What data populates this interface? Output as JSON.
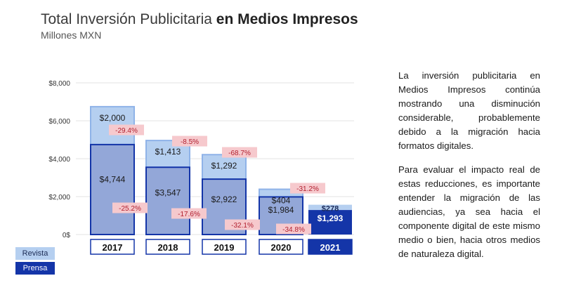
{
  "title": {
    "light": "Total Inversión Publicitaria ",
    "bold": "en Medios Impresos"
  },
  "subtitle": "Millones MXN",
  "legend": {
    "revista": "Revista",
    "prensa": "Prensa"
  },
  "paragraphs": [
    "La inversión publicitaria en Medios Impresos continúa mostrando una disminución considerable, probablemente debido a la migración hacia formatos digitales.",
    "Para evaluar el impacto real de estas reducciones, es importante entender la migración de las audiencias, ya sea hacia el componente digital de este mismo medio o bien, hacia otros medios de naturaleza digital."
  ],
  "colors": {
    "revista": "#b5cff0",
    "revista_border": "#8fb3e8",
    "prensa": "#93a7d8",
    "prensa_border": "#1435a8",
    "prensa_2021": "#1435a8",
    "change_bg": "#f6c9cd",
    "change_text": "#b01f2e"
  },
  "chart_data": {
    "type": "bar",
    "stacked": true,
    "categories": [
      "2017",
      "2018",
      "2019",
      "2020",
      "2021"
    ],
    "ylim": [
      0,
      8000
    ],
    "yticks": [
      "0$",
      "$2,000",
      "$4,000",
      "$6,000",
      "$8,000"
    ],
    "grid": true,
    "series": [
      {
        "name": "Prensa",
        "values": [
          4744,
          3547,
          2922,
          1984,
          1293
        ],
        "labels": [
          "$4,744",
          "$3,547",
          "$2,922",
          "$1,984",
          "$1,293"
        ]
      },
      {
        "name": "Revista",
        "values": [
          2000,
          1413,
          1292,
          404,
          278
        ],
        "labels": [
          "$2,000",
          "$1,413",
          "$1,292",
          "$404",
          "$278"
        ]
      }
    ],
    "changes": {
      "revista": [
        "-29.4%",
        "-8.5%",
        "-68.7%",
        "-31.2%"
      ],
      "prensa": [
        "-25.2%",
        "-17.6%",
        "-32.1%",
        "-34.8%"
      ]
    }
  }
}
